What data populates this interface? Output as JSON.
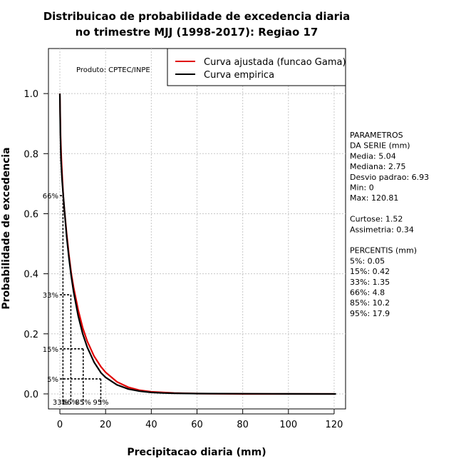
{
  "chart_data": {
    "type": "line",
    "title_line1": "Distribuicao de probabilidade de excedencia diaria",
    "title_line2": "no trimestre MJJ (1998-2017): Regiao 17",
    "xlabel": "Precipitacao diaria (mm)",
    "ylabel": "Probabilidade de excedencia",
    "xlim": [
      -5,
      125
    ],
    "ylim": [
      -0.05,
      1.15
    ],
    "xticks": [
      0,
      20,
      40,
      60,
      80,
      100,
      120
    ],
    "yticks": [
      0.0,
      0.2,
      0.4,
      0.6,
      0.8,
      1.0
    ],
    "ytick_labels": [
      "0.0",
      "0.2",
      "0.4",
      "0.6",
      "0.8",
      "1.0"
    ],
    "grid": true,
    "legend_position": "top-right",
    "product_label": "Produto: CPTEC/INPE",
    "series": [
      {
        "name": "Curva ajustada (funcao Gama)",
        "color": "#e00000",
        "x": [
          0,
          0.3,
          0.6,
          1,
          1.5,
          2,
          3,
          4,
          5,
          6,
          8,
          10,
          12,
          15,
          18,
          20,
          25,
          30,
          35,
          40,
          50,
          60,
          80,
          100,
          120
        ],
        "y": [
          1.0,
          0.86,
          0.79,
          0.73,
          0.66,
          0.61,
          0.53,
          0.46,
          0.4,
          0.355,
          0.28,
          0.22,
          0.175,
          0.125,
          0.09,
          0.072,
          0.04,
          0.022,
          0.012,
          0.007,
          0.003,
          0.001,
          0.0,
          0.0,
          0.0
        ]
      },
      {
        "name": "Curva empirica",
        "color": "#000000",
        "x": [
          0,
          0.2,
          0.5,
          1,
          1.5,
          2,
          3,
          4,
          5,
          6,
          8,
          10,
          12,
          15,
          18,
          20,
          25,
          30,
          35,
          40,
          45,
          50,
          60,
          80,
          100,
          120.81
        ],
        "y": [
          1.0,
          0.87,
          0.78,
          0.71,
          0.66,
          0.61,
          0.52,
          0.45,
          0.39,
          0.34,
          0.26,
          0.2,
          0.155,
          0.105,
          0.07,
          0.055,
          0.03,
          0.016,
          0.009,
          0.005,
          0.003,
          0.002,
          0.001,
          0.0005,
          0.0002,
          0.0
        ]
      }
    ],
    "percentile_markers": [
      {
        "label": "5%",
        "y": 0.05,
        "x": 17.9,
        "x_label": "95%"
      },
      {
        "label": "15%",
        "y": 0.15,
        "x": 10.2,
        "x_label": "85%"
      },
      {
        "label": "33%",
        "y": 0.33,
        "x": 4.8,
        "x_label": "66%"
      },
      {
        "label": "66%",
        "y": 0.66,
        "x": 1.35,
        "x_label": "33%"
      }
    ],
    "bottom_labels_text": [
      "33%",
      "66%",
      "85%",
      "95%"
    ]
  },
  "side_panel": {
    "lines": [
      "PARAMETROS",
      "DA SERIE (mm)",
      "  Media: 5.04",
      "  Mediana: 2.75",
      "  Desvio padrao: 6.93",
      "  Min: 0",
      "  Max: 120.81",
      "",
      "Curtose: 1.52",
      "Assimetria: 0.34",
      "",
      "PERCENTIS (mm)",
      "  5%: 0.05",
      "  15%: 0.42",
      "  33%: 1.35",
      "  66%: 4.8",
      "  85%: 10.2",
      "  95%: 17.9"
    ]
  }
}
